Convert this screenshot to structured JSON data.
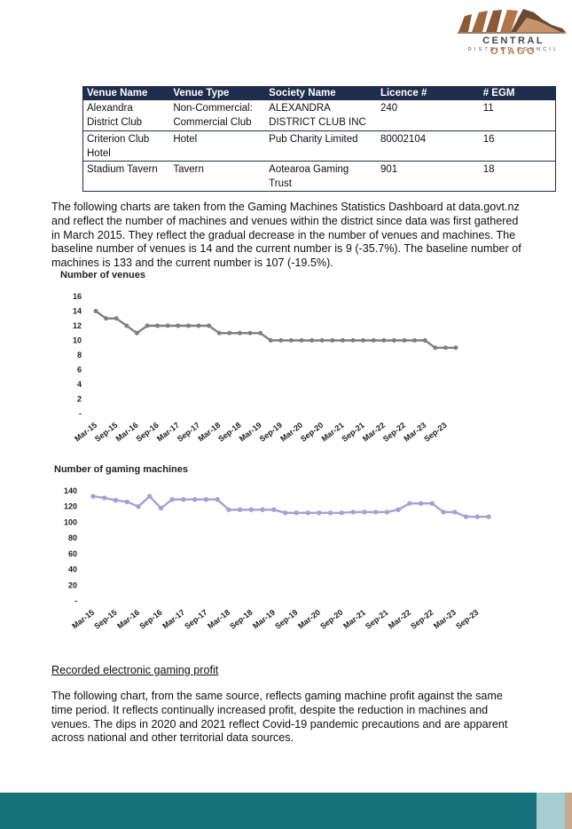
{
  "header": {
    "logo_line1_a": "CENTRAL",
    "logo_line1_b": "OTAGO",
    "logo_line2": "DISTRICT COUNCIL"
  },
  "table": {
    "headers": [
      "Venue Name",
      "Venue Type",
      "Society Name",
      "Licence #",
      "# EGM"
    ],
    "rows": [
      [
        "Alexandra District Club",
        "Non-Commercial: Commercial Club",
        "ALEXANDRA DISTRICT CLUB INC",
        "240",
        "11"
      ],
      [
        "Criterion Club Hotel",
        "Hotel",
        "Pub Charity Limited",
        "80002104",
        "16"
      ],
      [
        "Stadium Tavern",
        "Tavern",
        "Aotearoa Gaming Trust",
        "901",
        "18"
      ]
    ]
  },
  "paragraph1": "The following charts are taken from the Gaming Machines Statistics Dashboard at data.govt.nz and reflect the number of machines and venues within the district since data was first gathered in March 2015. They reflect the gradual decrease in the number of venues and machines. The baseline number of venues is 14 and the current number is 9 (-35.7%). The baseline number of machines is 133 and the current number is 107 (-19.5%).",
  "section_heading": "Recorded electronic gaming profit",
  "paragraph2": "The following chart, from the same source, reflects gaming machine profit against the same time period. It reflects continually increased profit, despite the reduction in machines and venues. The dips in 2020 and 2021 reflect Covid-19 pandemic precautions and are apparent across national and other territorial data sources.",
  "colors": {
    "table_header": "#1f2d4d",
    "venues_line": "#7f7f7f",
    "machines_line": "#a99fd4",
    "footer_teal": "#17737a"
  },
  "chart_data": [
    {
      "type": "line",
      "title": "Number of venues",
      "categories": [
        "Mar-15",
        "Jun-15",
        "Sep-15",
        "Dec-15",
        "Mar-16",
        "Jun-16",
        "Sep-16",
        "Dec-16",
        "Mar-17",
        "Jun-17",
        "Sep-17",
        "Dec-17",
        "Mar-18",
        "Jun-18",
        "Sep-18",
        "Dec-18",
        "Mar-19",
        "Jun-19",
        "Sep-19",
        "Dec-19",
        "Mar-20",
        "Jun-20",
        "Sep-20",
        "Dec-20",
        "Mar-21",
        "Jun-21",
        "Sep-21",
        "Dec-21",
        "Mar-22",
        "Jun-22",
        "Sep-22",
        "Dec-22",
        "Mar-23",
        "Jun-23",
        "Sep-23",
        "Dec-23"
      ],
      "tick_labels": [
        "Mar-15",
        "Sep-15",
        "Mar-16",
        "Sep-16",
        "Mar-17",
        "Sep-17",
        "Mar-18",
        "Sep-18",
        "Mar-19",
        "Sep-19",
        "Mar-20",
        "Sep-20",
        "Mar-21",
        "Sep-21",
        "Mar-22",
        "Sep-22",
        "Mar-23",
        "Sep-23"
      ],
      "values": [
        14,
        13,
        13,
        12,
        11,
        12,
        12,
        12,
        12,
        12,
        12,
        12,
        11,
        11,
        11,
        11,
        11,
        10,
        10,
        10,
        10,
        10,
        10,
        10,
        10,
        10,
        10,
        10,
        10,
        10,
        10,
        10,
        10,
        9,
        9,
        9
      ],
      "yticks": [
        0,
        2,
        4,
        6,
        8,
        10,
        12,
        14,
        16
      ],
      "ytick_labels": [
        "-",
        "2",
        "4",
        "6",
        "8",
        "10",
        "12",
        "14",
        "16"
      ],
      "ylim": [
        0,
        16
      ]
    },
    {
      "type": "line",
      "title": "Number of gaming machines",
      "categories": [
        "Mar-15",
        "Jun-15",
        "Sep-15",
        "Dec-15",
        "Mar-16",
        "Jun-16",
        "Sep-16",
        "Dec-16",
        "Mar-17",
        "Jun-17",
        "Sep-17",
        "Dec-17",
        "Mar-18",
        "Jun-18",
        "Sep-18",
        "Dec-18",
        "Mar-19",
        "Jun-19",
        "Sep-19",
        "Dec-19",
        "Mar-20",
        "Jun-20",
        "Sep-20",
        "Dec-20",
        "Mar-21",
        "Jun-21",
        "Sep-21",
        "Dec-21",
        "Mar-22",
        "Jun-22",
        "Sep-22",
        "Dec-22",
        "Mar-23",
        "Jun-23",
        "Sep-23",
        "Dec-23"
      ],
      "tick_labels": [
        "Mar-15",
        "Sep-15",
        "Mar-16",
        "Sep-16",
        "Mar-17",
        "Sep-17",
        "Mar-18",
        "Sep-18",
        "Mar-19",
        "Sep-19",
        "Mar-20",
        "Sep-20",
        "Mar-21",
        "Sep-21",
        "Mar-22",
        "Sep-22",
        "Mar-23",
        "Sep-23"
      ],
      "values": [
        133,
        131,
        128,
        126,
        120,
        133,
        118,
        129,
        129,
        129,
        129,
        129,
        116,
        116,
        116,
        116,
        116,
        112,
        112,
        112,
        112,
        112,
        112,
        113,
        113,
        113,
        113,
        116,
        124,
        124,
        124,
        113,
        113,
        107,
        107,
        107
      ],
      "yticks": [
        0,
        20,
        40,
        60,
        80,
        100,
        120,
        140
      ],
      "ytick_labels": [
        "-",
        "20",
        "40",
        "60",
        "80",
        "100",
        "120",
        "140"
      ],
      "ylim": [
        0,
        140
      ]
    }
  ]
}
